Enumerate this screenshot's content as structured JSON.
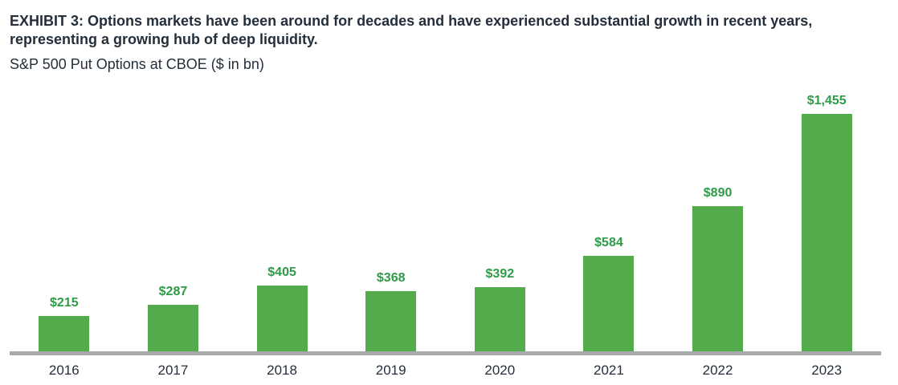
{
  "figure": {
    "title_line1": "EXHIBIT 3: Options markets have been around for decades and have experienced substantial growth in recent years,",
    "title_line2": "representing a growing hub of deep liquidity.",
    "subtitle": "S&P 500 Put Options at CBOE ($ in bn)"
  },
  "colors": {
    "bar": "#54ab4b",
    "value_label": "#2e9b47",
    "text": "#242f3b",
    "axis": "#a7a9ac"
  },
  "chart_data": {
    "type": "bar",
    "title": "S&P 500 Put Options at CBOE ($ in bn)",
    "categories": [
      "2016",
      "2017",
      "2018",
      "2019",
      "2020",
      "2021",
      "2022",
      "2023"
    ],
    "values": [
      215,
      287,
      405,
      368,
      392,
      584,
      890,
      1455
    ],
    "value_labels": [
      "$215",
      "$287",
      "$405",
      "$368",
      "$392",
      "$584",
      "$890",
      "$1,455"
    ],
    "xlabel": "",
    "ylabel": "",
    "ylim": [
      0,
      1500
    ],
    "grid": false,
    "legend": false,
    "bar_color": "#54ab4b",
    "value_label_color": "#2e9b47",
    "axis_line_color": "#a7a9ac"
  }
}
